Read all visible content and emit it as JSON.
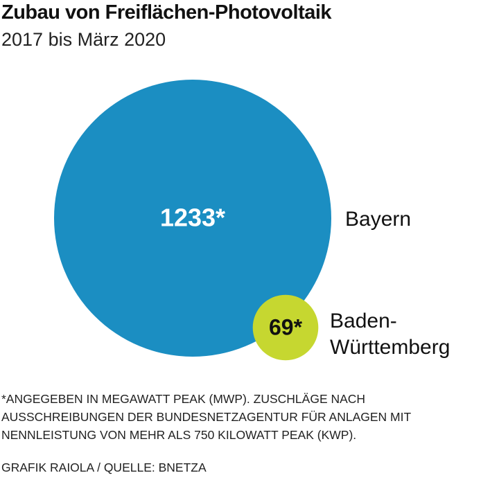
{
  "chart_data": {
    "type": "bubble",
    "title": "Zubau von Freiflächen-Photovoltaik",
    "subtitle": "2017 bis März 2020",
    "categories": [
      "Bayern",
      "Baden-Württemberg"
    ],
    "values": [
      1233,
      69
    ],
    "value_labels": [
      "1233*",
      "69*"
    ],
    "colors": [
      "#1b8ec2",
      "#c6d730"
    ],
    "label_colors": [
      "#ffffff",
      "#111111"
    ],
    "footnote": "*ANGEGEBEN IN MEGAWATT PEAK (MWP).  ZUSCHLÄGE NACH AUSSCHREIBUNGEN DER BUNDESNETZAGENTUR FÜR ANLAGEN MIT NENNLEISTUNG VON MEHR ALS 750 KILOWATT PEAK (KWP).",
    "source": "GRAFIK RAIOLA / QUELLE: BNETZA"
  }
}
